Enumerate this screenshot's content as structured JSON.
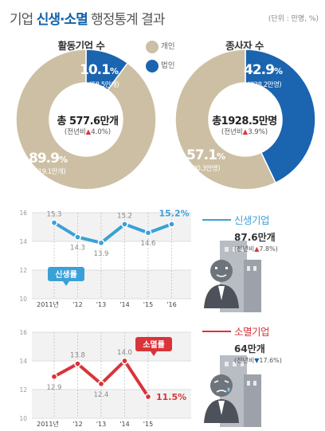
{
  "header": {
    "title_prefix": "기업 ",
    "title_highlight": "신생·소멸",
    "title_suffix": " 행정통계 결과",
    "unit": "(단위 : 만명, %)"
  },
  "legend": {
    "individual": "개인",
    "corporate": "법인"
  },
  "colors": {
    "individual": "#cdbfa3",
    "corporate": "#1a64b0",
    "birth_line": "#3aa0d8",
    "death_line": "#d9343a"
  },
  "donut_active": {
    "title": "활동기업 수",
    "total": "총 577.6만개",
    "yoy_label": "(전년비",
    "yoy_arrow": "▲",
    "yoy_value": "4.0%)",
    "corporate_pct": "10.1",
    "corporate_sub": "(58.5만개)",
    "individual_pct": "89.9",
    "individual_sub": "(519.1만개)"
  },
  "donut_workers": {
    "title": "종사자 수",
    "total": "총1928.5만명",
    "yoy_label": "(전년비",
    "yoy_arrow": "▲",
    "yoy_value": "3.9%)",
    "corporate_pct": "42.9",
    "corporate_sub": "(828.2만명)",
    "individual_pct": "57.1",
    "individual_sub": "(1100.3만명)"
  },
  "pct_sign": "%",
  "birth": {
    "title": "신생기업",
    "value": "87.6만개",
    "yoy_label": "(전년비",
    "yoy_arrow": "▲",
    "yoy_value": "7.8%)",
    "badge": "신생률"
  },
  "death": {
    "title": "소멸기업",
    "value": "64만개",
    "yoy_label": "(전년비",
    "yoy_arrow": "▼",
    "yoy_value": "17.6%)",
    "badge": "소멸률"
  },
  "chart_data": [
    {
      "type": "pie",
      "title": "활동기업 수",
      "labels": [
        "개인",
        "법인"
      ],
      "values": [
        89.9,
        10.1
      ]
    },
    {
      "type": "pie",
      "title": "종사자 수",
      "labels": [
        "개인",
        "법인"
      ],
      "values": [
        57.1,
        42.9
      ]
    },
    {
      "type": "line",
      "title": "신생률",
      "categories": [
        "2011년",
        "'12",
        "'13",
        "'14",
        "'15",
        "'16"
      ],
      "values": [
        15.3,
        14.3,
        13.9,
        15.2,
        14.6,
        15.2
      ],
      "value_labels": [
        "15.3",
        "14.3",
        "13.9",
        "15.2",
        "14.6",
        "15.2"
      ],
      "ylim": [
        10,
        16
      ],
      "yticks": [
        10,
        12,
        14,
        16
      ],
      "grid": true
    },
    {
      "type": "line",
      "title": "소멸률",
      "categories": [
        "2011년",
        "'12",
        "'13",
        "'14",
        "'15"
      ],
      "values": [
        12.9,
        13.8,
        12.4,
        14.0,
        11.5
      ],
      "value_labels": [
        "12.9",
        "13.8",
        "12.4",
        "14.0",
        "11.5"
      ],
      "ylim": [
        10,
        16
      ],
      "yticks": [
        10,
        12,
        14,
        16
      ],
      "grid": true
    }
  ]
}
